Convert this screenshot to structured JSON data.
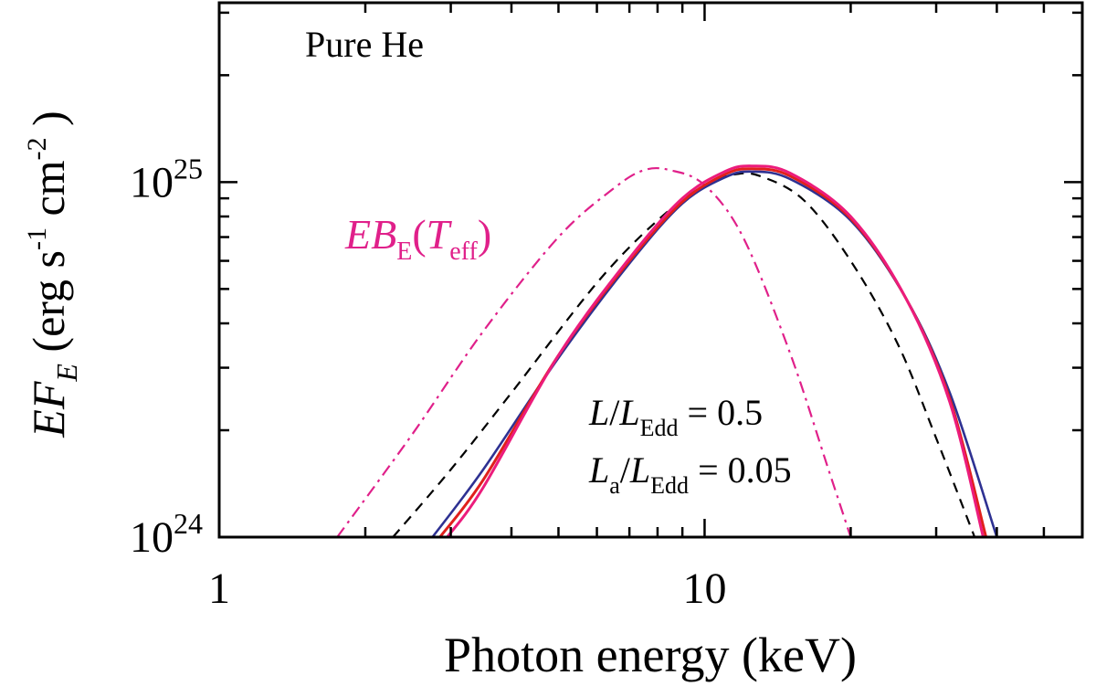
{
  "chart_data": {
    "type": "line",
    "x_scale": "log",
    "y_scale": "log",
    "xlim": [
      1,
      60
    ],
    "ylim": [
      1e+24,
      3.2e+25
    ],
    "xlabel": "Photon energy (keV)",
    "ylabel": {
      "main": "EF",
      "sub": "E",
      "units_open": " (erg s",
      "exp1": "-1",
      "mid": " cm",
      "exp2": "-2",
      "close": " )"
    },
    "x_ticks": [
      {
        "value": 1,
        "label": "1"
      },
      {
        "value": 10,
        "label": "10"
      }
    ],
    "y_ticks": [
      {
        "value": 1e+24,
        "base": "10",
        "exp": "24"
      },
      {
        "value": 1e+25,
        "base": "10",
        "exp": "25"
      }
    ],
    "panel_label": "Pure He",
    "blackbody_label": {
      "pre": "EB",
      "sub1": "E",
      "open": "(",
      "T": "T",
      "sub2": "eff",
      "close": ")",
      "color": "#e0208a"
    },
    "annotation_line1": {
      "L": "L",
      "slash": "/",
      "L2": "L",
      "sub": "Edd",
      "rest": " = 0.5"
    },
    "annotation_line2": {
      "L": "L",
      "sub_a": "a",
      "slash": "/",
      "L2": "L",
      "sub": "Edd",
      "rest": " = 0.05"
    },
    "series": [
      {
        "name": "blackbody",
        "color": "#e0208a",
        "dash": "dashdot",
        "width": 2.2,
        "x": [
          1.75,
          2.5,
          3.5,
          5,
          6.5,
          7.5,
          8.5,
          10,
          12,
          15,
          18,
          20
        ],
        "y": [
          1e+24,
          1.95e+24,
          3.8e+24,
          7e+24,
          9.6e+24,
          1.08e+25,
          1.08e+25,
          9.8e+24,
          7e+24,
          3.3e+24,
          1.55e+24,
          1e+24
        ]
      },
      {
        "name": "black dashed",
        "color": "#000000",
        "dash": "dash",
        "width": 2.2,
        "x": [
          2.28,
          3,
          4,
          6,
          8,
          10,
          11.5,
          13,
          16,
          20,
          25,
          30,
          36
        ],
        "y": [
          1e+24,
          1.55e+24,
          2.55e+24,
          5.2e+24,
          7.8e+24,
          9.8e+24,
          1.05e+25,
          1.04e+25,
          8.9e+24,
          6e+24,
          3.5e+24,
          1.9e+24,
          1e+24
        ]
      },
      {
        "name": "blue",
        "color": "#2e3192",
        "dash": "solid",
        "width": 2.6,
        "x": [
          2.75,
          3.5,
          5,
          7,
          9,
          11,
          12.5,
          15,
          20,
          26,
          32,
          40
        ],
        "y": [
          1e+24,
          1.55e+24,
          3.2e+24,
          5.9e+24,
          8.7e+24,
          1.03e+25,
          1.07e+25,
          1.02e+25,
          7.8e+24,
          4.7e+24,
          2.55e+24,
          1e+24
        ]
      },
      {
        "name": "red",
        "color": "#e0201c",
        "dash": "solid",
        "width": 3,
        "x": [
          2.85,
          3.5,
          5,
          7,
          9,
          11,
          12.5,
          15,
          20,
          26,
          32,
          38
        ],
        "y": [
          1e+24,
          1.45e+24,
          3.25e+24,
          6e+24,
          8.8e+24,
          1.05e+25,
          1.09e+25,
          1.04e+25,
          7.9e+24,
          4.7e+24,
          2.45e+24,
          1e+24
        ]
      },
      {
        "name": "magenta",
        "color": "#ec1c7c",
        "dash": "solid",
        "width": 3,
        "x": [
          2.95,
          3.5,
          5,
          7,
          9,
          11,
          12.5,
          15,
          20,
          26,
          32,
          37.5
        ],
        "y": [
          1e+24,
          1.38e+24,
          3.25e+24,
          6.1e+24,
          9e+24,
          1.07e+25,
          1.11e+25,
          1.06e+25,
          8e+24,
          4.7e+24,
          2.4e+24,
          1e+24
        ]
      }
    ]
  }
}
